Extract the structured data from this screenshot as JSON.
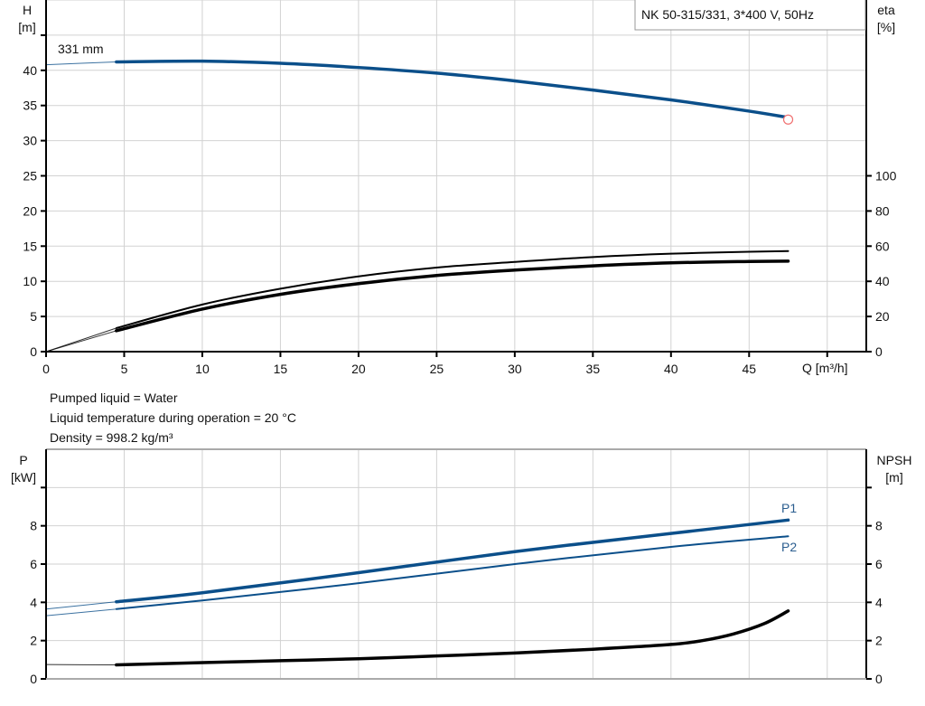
{
  "title_box": "NK 50-315/331, 3*400 V, 50Hz",
  "info": {
    "line1": "Pumped liquid = Water",
    "line2": "Liquid temperature during operation = 20 °C",
    "line3": "Density = 998.2 kg/m³"
  },
  "colors": {
    "head": "#0b4f8a",
    "power": "#0b4f8a",
    "eta": "#000000",
    "npsh": "#000000",
    "duty_point": "#f07070",
    "grid": "#d2d2d2"
  },
  "chart_data": [
    {
      "type": "line",
      "xlabel": "Q [m³/h]",
      "ylabel_left": {
        "name": "H",
        "unit": "[m]"
      },
      "ylabel_right": {
        "name": "eta",
        "unit": "[%]"
      },
      "xlim": [
        0,
        52.5
      ],
      "ylim_left": [
        0,
        50
      ],
      "ylim_right": [
        0,
        200
      ],
      "xticks": [
        0,
        5,
        10,
        15,
        20,
        25,
        30,
        35,
        40,
        45
      ],
      "yticks_left": [
        0,
        5,
        10,
        15,
        20,
        25,
        30,
        35,
        40
      ],
      "yticks_right": [
        0,
        20,
        40,
        60,
        80,
        100
      ],
      "grid": true,
      "curve_label": "331 mm",
      "series": [
        {
          "axis": "left",
          "color": "head",
          "x": [
            0,
            4.5,
            10,
            15,
            20,
            25,
            30,
            35,
            40,
            45,
            47.5
          ],
          "y": [
            40.8,
            41.2,
            41.3,
            41.0,
            40.4,
            39.6,
            38.5,
            37.2,
            35.8,
            34.2,
            33.3
          ]
        },
        {
          "axis": "right",
          "color": "eta",
          "x": [
            0,
            4.5,
            10,
            15,
            20,
            25,
            30,
            35,
            40,
            45,
            47.5
          ],
          "y": [
            0,
            13.4,
            26.8,
            35.8,
            42.8,
            47.8,
            51.0,
            53.8,
            55.7,
            56.8,
            57.2
          ]
        },
        {
          "axis": "right",
          "color": "eta",
          "x": [
            0,
            4.5,
            10,
            15,
            20,
            25,
            30,
            35,
            40,
            45,
            47.5
          ],
          "y": [
            0,
            11.9,
            24.2,
            32.6,
            38.7,
            43.3,
            46.4,
            48.8,
            50.5,
            51.3,
            51.5
          ]
        }
      ],
      "duty_point": {
        "x": 47.5,
        "y": 33.0
      }
    },
    {
      "type": "line",
      "ylabel_left": {
        "name": "P",
        "unit": "[kW]"
      },
      "ylabel_right": {
        "name": "NPSH",
        "unit": "[m]"
      },
      "xlim": [
        0,
        52.5
      ],
      "ylim_left": [
        0,
        12
      ],
      "ylim_right": [
        0,
        12
      ],
      "yticks_left": [
        0,
        2,
        4,
        6,
        8
      ],
      "yticks_right": [
        0,
        2,
        4,
        6,
        8
      ],
      "grid": true,
      "series": [
        {
          "name": "P1",
          "axis": "left",
          "color": "power",
          "x": [
            0,
            4.5,
            10,
            20,
            30,
            40,
            47.5
          ],
          "y": [
            3.65,
            4.03,
            4.5,
            5.55,
            6.65,
            7.6,
            8.3
          ]
        },
        {
          "name": "P2",
          "axis": "left",
          "color": "power",
          "x": [
            0,
            4.5,
            10,
            20,
            30,
            40,
            47.5
          ],
          "y": [
            3.3,
            3.65,
            4.1,
            5.0,
            6.0,
            6.9,
            7.45
          ]
        },
        {
          "axis": "right",
          "color": "npsh",
          "x": [
            0,
            4.5,
            10,
            15,
            20,
            25,
            30,
            35,
            40,
            42,
            44,
            46,
            47.5
          ],
          "y": [
            0.75,
            0.73,
            0.85,
            0.95,
            1.05,
            1.2,
            1.35,
            1.55,
            1.8,
            2.0,
            2.35,
            2.9,
            3.55
          ]
        }
      ]
    }
  ]
}
